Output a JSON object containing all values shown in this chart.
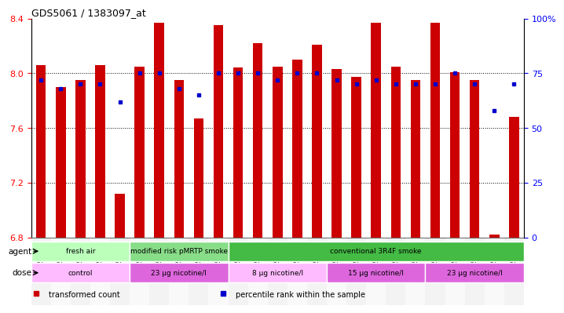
{
  "title": "GDS5061 / 1383097_at",
  "samples": [
    "GSM1217156",
    "GSM1217157",
    "GSM1217158",
    "GSM1217159",
    "GSM1217160",
    "GSM1217161",
    "GSM1217162",
    "GSM1217163",
    "GSM1217164",
    "GSM1217165",
    "GSM1217171",
    "GSM1217172",
    "GSM1217173",
    "GSM1217174",
    "GSM1217175",
    "GSM1217166",
    "GSM1217167",
    "GSM1217168",
    "GSM1217169",
    "GSM1217170",
    "GSM1217176",
    "GSM1217177",
    "GSM1217178",
    "GSM1217179",
    "GSM1217180"
  ],
  "bar_values": [
    8.06,
    7.9,
    7.95,
    8.06,
    7.12,
    8.05,
    8.37,
    7.95,
    7.67,
    8.35,
    8.04,
    8.22,
    8.05,
    8.1,
    8.21,
    8.03,
    7.97,
    8.37,
    8.05,
    7.95,
    8.37,
    8.01,
    7.95,
    6.82,
    7.68
  ],
  "percentile_values": [
    72,
    68,
    70,
    70,
    62,
    75,
    75,
    68,
    65,
    75,
    75,
    75,
    72,
    75,
    75,
    72,
    70,
    72,
    70,
    70,
    70,
    75,
    70,
    58,
    70
  ],
  "ylim_left": [
    6.8,
    8.4
  ],
  "ylim_right": [
    0,
    100
  ],
  "yticks_left": [
    6.8,
    7.2,
    7.6,
    8.0,
    8.4
  ],
  "yticks_right": [
    0,
    25,
    50,
    75,
    100
  ],
  "ytick_right_labels": [
    "0",
    "25",
    "50",
    "75",
    "100%"
  ],
  "bar_color": "#cc0000",
  "dot_color": "#0000cc",
  "agent_groups": [
    {
      "label": "fresh air",
      "start": 0,
      "end": 5,
      "color": "#bbffbb"
    },
    {
      "label": "modified risk pMRTP smoke",
      "start": 5,
      "end": 10,
      "color": "#88dd88"
    },
    {
      "label": "conventional 3R4F smoke",
      "start": 10,
      "end": 25,
      "color": "#44bb44"
    }
  ],
  "dose_groups": [
    {
      "label": "control",
      "start": 0,
      "end": 5,
      "color": "#ffbbff"
    },
    {
      "label": "23 μg nicotine/l",
      "start": 5,
      "end": 10,
      "color": "#dd66dd"
    },
    {
      "label": "8 μg nicotine/l",
      "start": 10,
      "end": 15,
      "color": "#ffbbff"
    },
    {
      "label": "15 μg nicotine/l",
      "start": 15,
      "end": 20,
      "color": "#dd66dd"
    },
    {
      "label": "23 μg nicotine/l",
      "start": 20,
      "end": 25,
      "color": "#dd66dd"
    }
  ],
  "legend_items": [
    {
      "label": "transformed count",
      "color": "#cc0000"
    },
    {
      "label": "percentile rank within the sample",
      "color": "#0000cc"
    }
  ]
}
